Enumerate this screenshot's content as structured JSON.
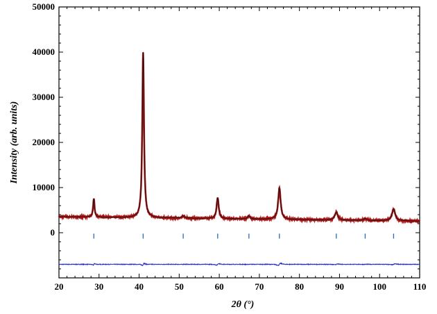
{
  "chart_data": {
    "type": "line",
    "title": "",
    "xlabel": "2θ (°)",
    "ylabel": "Intensity (arb. units)",
    "xlim": [
      20,
      110
    ],
    "ylim": [
      -10000,
      50000
    ],
    "x_ticks": [
      20,
      30,
      40,
      50,
      60,
      70,
      80,
      90,
      100,
      110
    ],
    "y_ticks": [
      0,
      10000,
      20000,
      30000,
      40000,
      50000
    ],
    "grid": false,
    "legend": "none",
    "background": 3550,
    "background_slope": -11,
    "peaks": [
      {
        "x": 28.7,
        "height": 4100
      },
      {
        "x": 41.0,
        "height": 36700
      },
      {
        "x": 51.0,
        "height": 550
      },
      {
        "x": 59.6,
        "height": 4600
      },
      {
        "x": 67.4,
        "height": 700
      },
      {
        "x": 75.0,
        "height": 6900
      },
      {
        "x": 89.2,
        "height": 1800
      },
      {
        "x": 96.4,
        "height": 400
      },
      {
        "x": 103.5,
        "height": 2600
      }
    ],
    "bragg_positions": [
      28.7,
      41.0,
      51.0,
      59.6,
      67.4,
      75.0,
      89.2,
      96.4,
      103.5
    ],
    "series": [
      {
        "role": "observed",
        "color": "#b01818"
      },
      {
        "role": "calculated",
        "color": "#111111"
      },
      {
        "role": "bragg_reflections",
        "color": "#2a6ab0"
      },
      {
        "role": "difference",
        "color": "#1a2cc8",
        "offset": -7000
      }
    ]
  }
}
